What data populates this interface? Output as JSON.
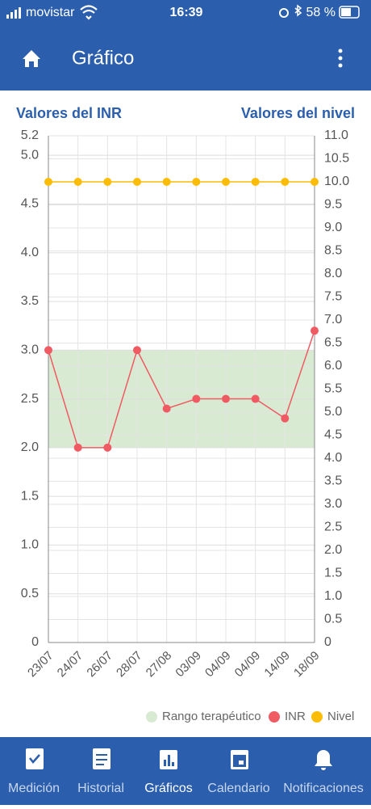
{
  "status_bar": {
    "carrier": "movistar",
    "time": "16:39",
    "battery": "58 %"
  },
  "header": {
    "title": "Gráfico"
  },
  "chart_data": {
    "type": "line",
    "y_label": "Valores del INR",
    "y2_label": "Valores del nivel",
    "categories": [
      "23/07",
      "24/07",
      "26/07",
      "28/07",
      "27/08",
      "03/09",
      "04/09",
      "04/09",
      "14/09",
      "18/09"
    ],
    "range": {
      "name": "Rango terapéutico",
      "color": "#d9ead3",
      "values": [
        2,
        3
      ]
    },
    "series": [
      {
        "name": "INR",
        "color": "#ef5a63",
        "values": [
          3.0,
          2.0,
          2.0,
          3.0,
          2.4,
          2.5,
          2.5,
          2.5,
          2.3,
          3.2
        ]
      },
      {
        "name": "Nivel",
        "color": "#fbbc05",
        "axis": "y2",
        "values": [
          10,
          10,
          10,
          10,
          10,
          10,
          10,
          10,
          10,
          10
        ]
      }
    ],
    "ylim": [
      0,
      5.2
    ],
    "yticks": [
      0,
      0.5,
      {
        "value": 1,
        "label": "1.0"
      },
      1.5,
      {
        "value": 2,
        "label": "2.0"
      },
      2.5,
      {
        "value": 3,
        "label": "3.0"
      },
      3.5,
      {
        "value": 4,
        "label": "4.0"
      },
      4.5,
      {
        "value": 5,
        "label": "5.0"
      },
      5.2
    ],
    "y2lim": [
      0,
      11
    ],
    "y2ticks": [
      0,
      0.5,
      {
        "value": 1,
        "label": "1.0"
      },
      1.5,
      {
        "value": 2,
        "label": "2.0"
      },
      2.5,
      {
        "value": 3,
        "label": "3.0"
      },
      3.5,
      {
        "value": 4,
        "label": "4.0"
      },
      4.5,
      {
        "value": 5,
        "label": "5.0"
      },
      5.5,
      {
        "value": 6,
        "label": "6.0"
      },
      6.5,
      {
        "value": 7,
        "label": "7.0"
      },
      7.5,
      {
        "value": 8,
        "label": "8.0"
      },
      8.5,
      {
        "value": 9,
        "label": "9.0"
      },
      9.5,
      {
        "value": 10,
        "label": "10.0"
      },
      10.5,
      {
        "value": 11,
        "label": "11.0"
      }
    ],
    "grid": true
  },
  "tabs": [
    "Medición",
    "Historial",
    "Gráficos",
    "Calendario",
    "Notificaciones"
  ]
}
